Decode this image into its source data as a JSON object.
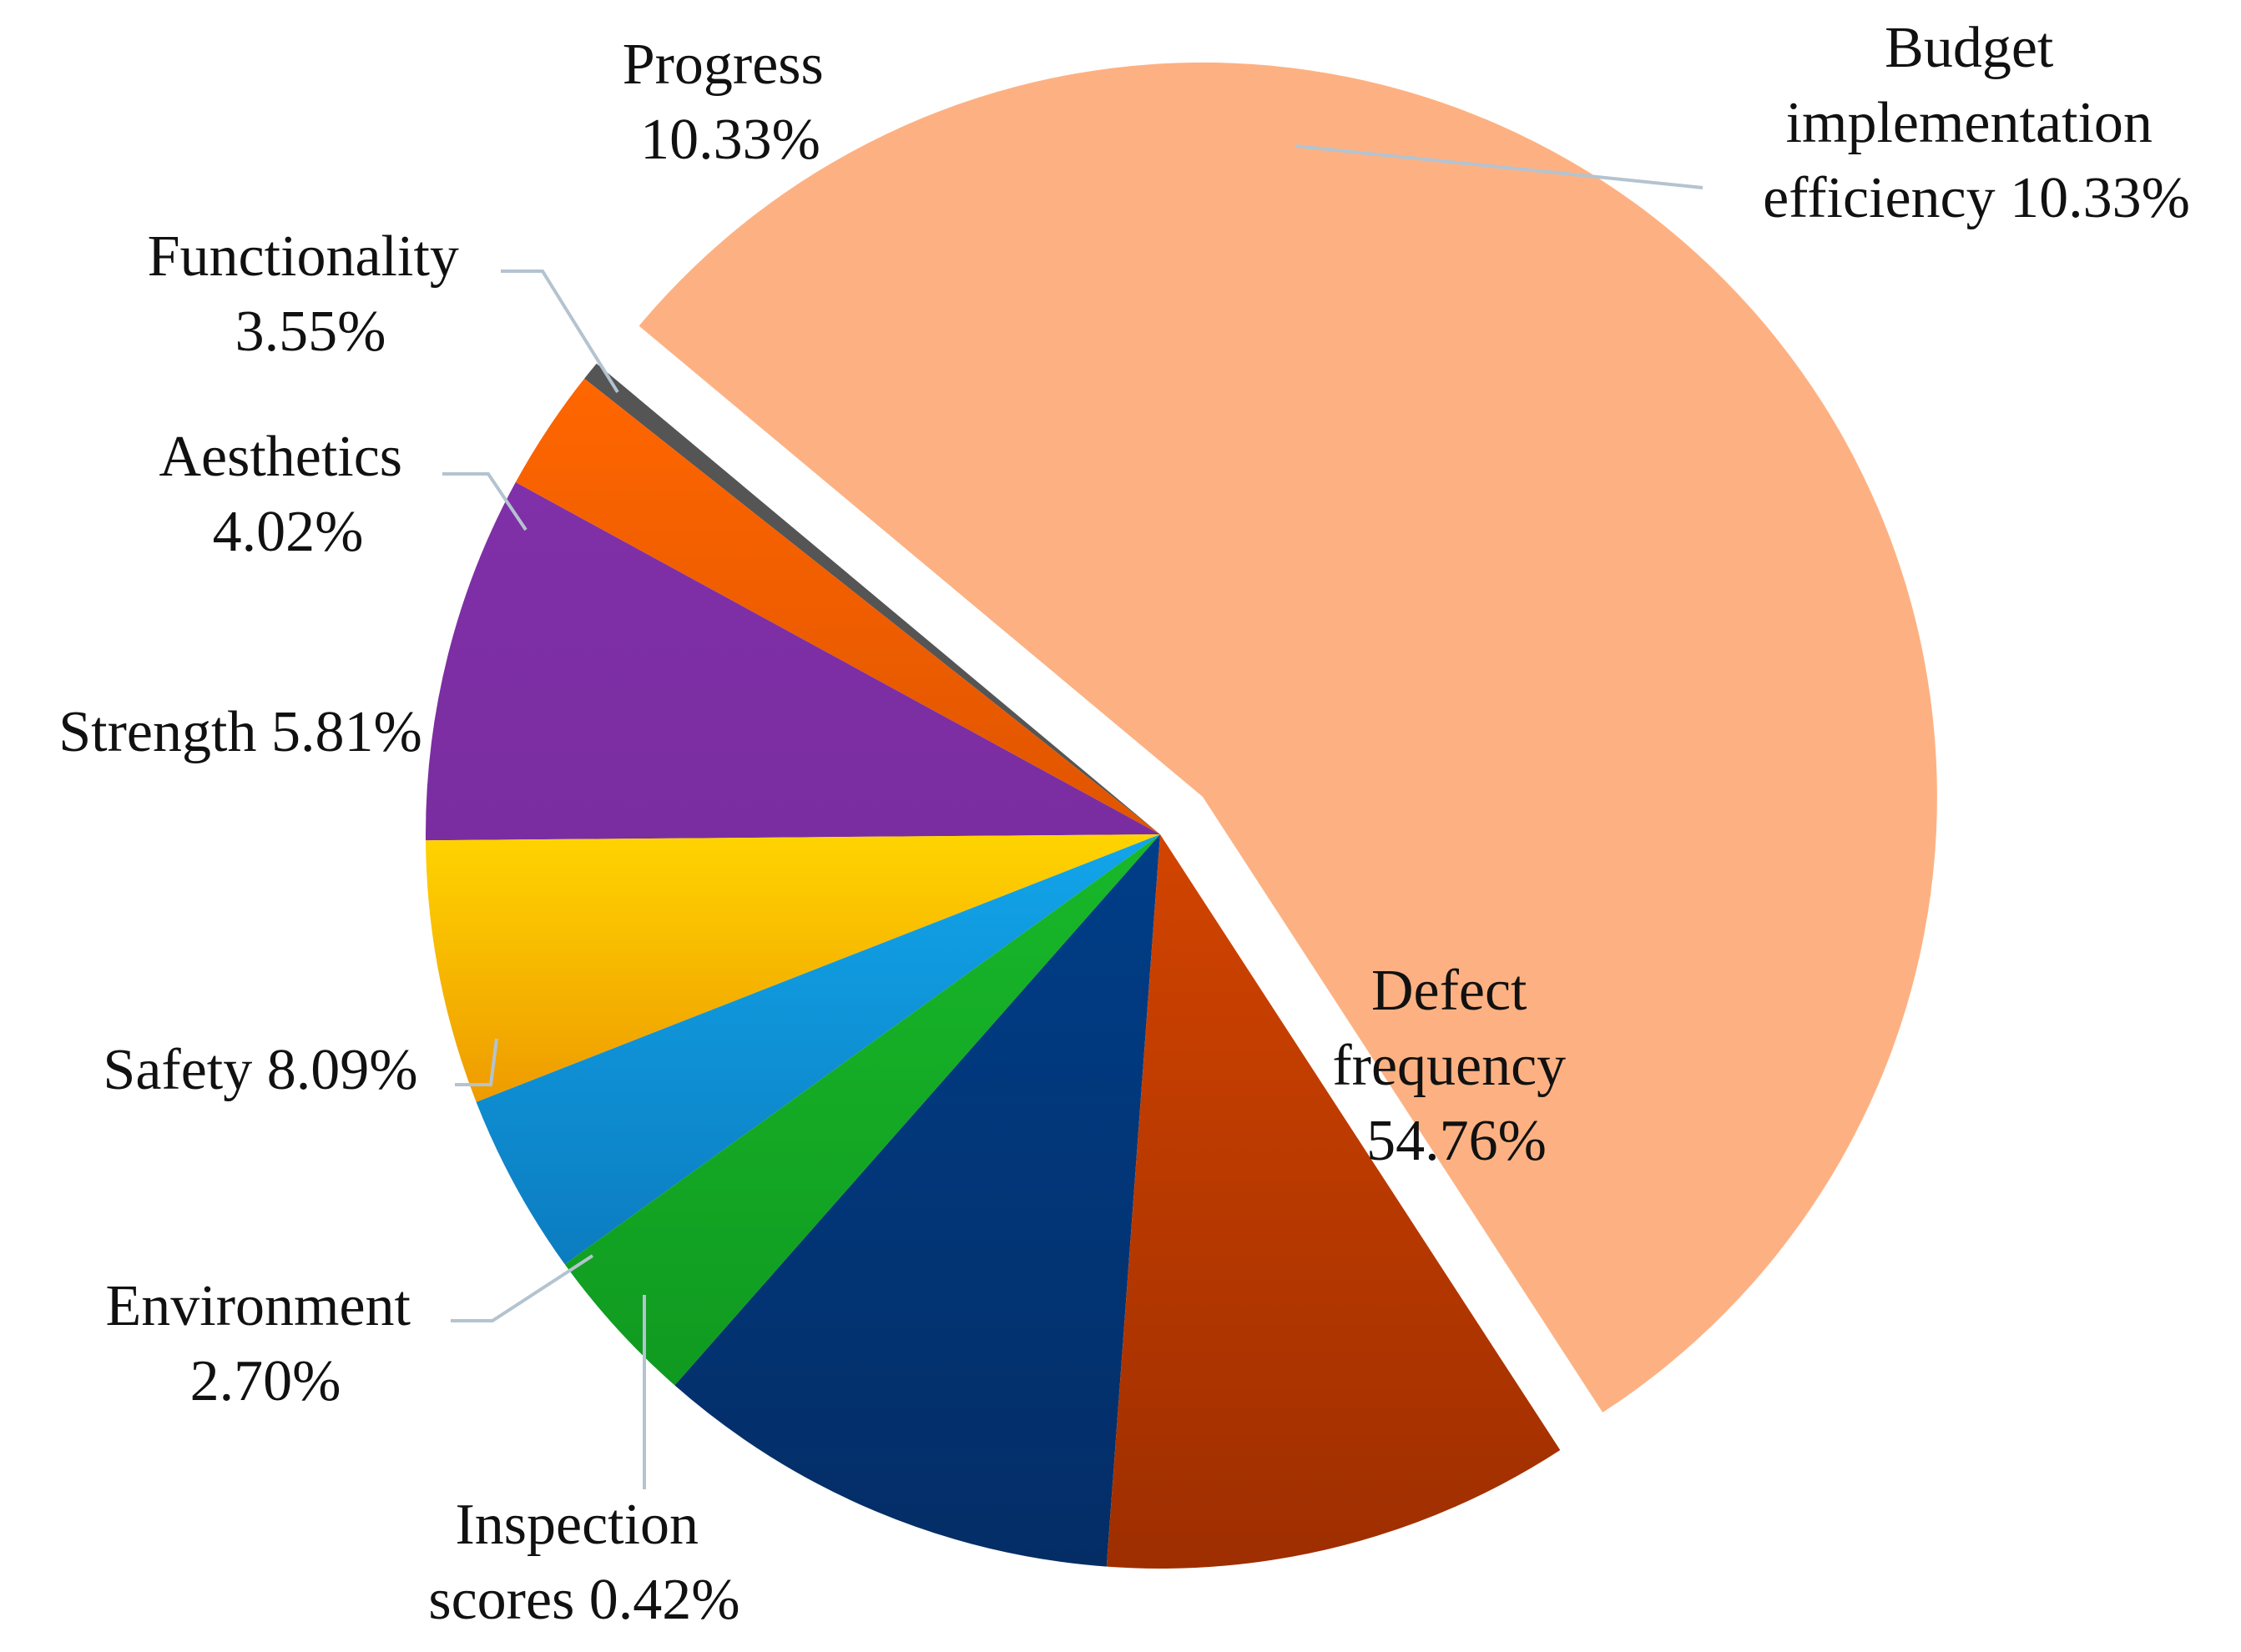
{
  "chart_data": {
    "type": "pie",
    "slices": [
      {
        "name": "Defect frequency",
        "label": "54.76%",
        "value": 54.76,
        "color": "#FDB182",
        "exploded": true
      },
      {
        "name": "Inspection scores",
        "label": "0.42%",
        "value": 0.42,
        "color": "#555555"
      },
      {
        "name": "Environment",
        "label": "2.70%",
        "value": 2.7,
        "color": "#FF6600",
        "color2": "#E05500"
      },
      {
        "name": "Safety",
        "label": "8.09%",
        "value": 8.09,
        "color": "#8030A8",
        "color2": "#7A2DA0"
      },
      {
        "name": "Strength",
        "label": "5.81%",
        "value": 5.81,
        "color": "#FFD400",
        "color2": "#EE9B00"
      },
      {
        "name": "Aesthetics",
        "label": "4.02%",
        "value": 4.02,
        "color": "#12A5EA",
        "color2": "#0C7CC0"
      },
      {
        "name": "Functionality",
        "label": "3.55%",
        "value": 3.55,
        "color": "#18B82A",
        "color2": "#109A20"
      },
      {
        "name": "Progress",
        "label": "10.33%",
        "value": 10.33,
        "color": "#003E88",
        "color2": "#042D66"
      },
      {
        "name": "Budget implementation efficiency",
        "label": "10.33%",
        "value": 10.33,
        "color": "#D24400",
        "color2": "#9E2E00"
      }
    ]
  },
  "labels": {
    "defect": [
      "Defect",
      "frequency",
      "54.76%"
    ],
    "inspection": [
      "Inspection",
      "scores 0.42%"
    ],
    "environment": [
      "Environment",
      "2.70%"
    ],
    "safety": [
      "Safety 8.09%"
    ],
    "strength": [
      "Strength 5.81%"
    ],
    "aesthetics": [
      "Aesthetics",
      "4.02%"
    ],
    "functionality": [
      "Functionality",
      "3.55%"
    ],
    "progress": [
      "Progress",
      "10.33%"
    ],
    "budget": [
      "Budget",
      "implementation",
      "efficiency 10.33%"
    ]
  }
}
